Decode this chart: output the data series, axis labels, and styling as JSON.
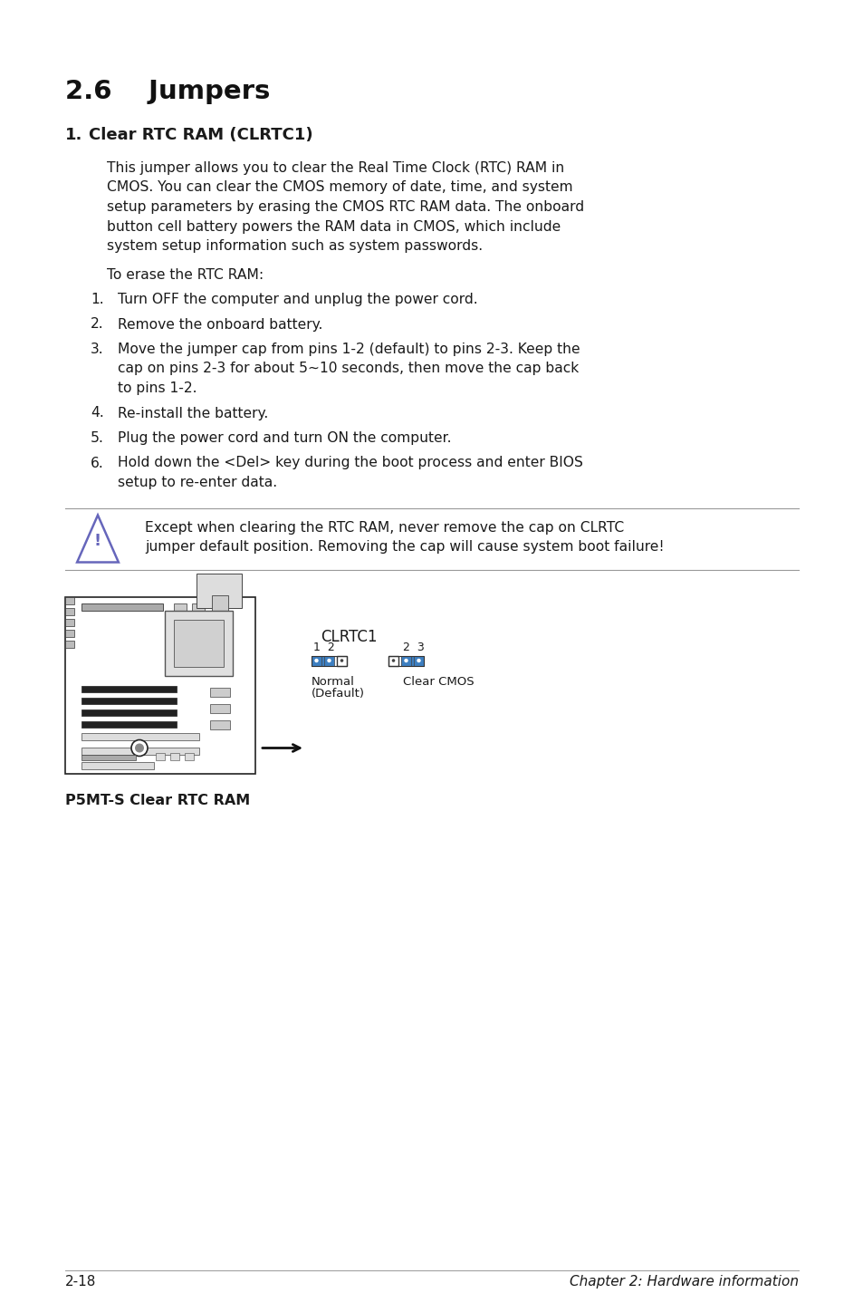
{
  "bg_color": "#ffffff",
  "title": "2.6    Jumpers",
  "section_title": "Clear RTC RAM (CLRTC1)",
  "body_text_lines": [
    "This jumper allows you to clear the Real Time Clock (RTC) RAM in",
    "CMOS. You can clear the CMOS memory of date, time, and system",
    "setup parameters by erasing the CMOS RTC RAM data. The onboard",
    "button cell battery powers the RAM data in CMOS, which include",
    "system setup information such as system passwords."
  ],
  "erase_intro": "To erase the RTC RAM:",
  "step1": "Turn OFF the computer and unplug the power cord.",
  "step2": "Remove the onboard battery.",
  "step3a": "Move the jumper cap from pins 1-2 (default) to pins 2-3. Keep the",
  "step3b": "cap on pins 2-3 for about 5~10 seconds, then move the cap back",
  "step3c": "to pins 1-2.",
  "step4": "Re-install the battery.",
  "step5": "Plug the power cord and turn ON the computer.",
  "step6a": "Hold down the <Del> key during the boot process and enter BIOS",
  "step6b": "setup to re-enter data.",
  "warning_line1": "Except when clearing the RTC RAM, never remove the cap on CLRTC",
  "warning_line2": "jumper default position. Removing the cap will cause system boot failure!",
  "clrtc1_label": "CLRTC1",
  "pin_label_normal": "1  2",
  "pin_label_clear": "2  3",
  "normal_label1": "Normal",
  "normal_label2": "(Default)",
  "clear_label": "Clear CMOS",
  "diagram_caption": "P5MT-S Clear RTC RAM",
  "footer_left": "2-18",
  "footer_right": "Chapter 2: Hardware information",
  "text_color": "#1a1a1a",
  "title_color": "#111111",
  "warn_line_color": "#999999",
  "jumper_blue": "#3d7fc1",
  "pin_open_color": "#ffffff",
  "pin_dot_color": "#ffffff"
}
